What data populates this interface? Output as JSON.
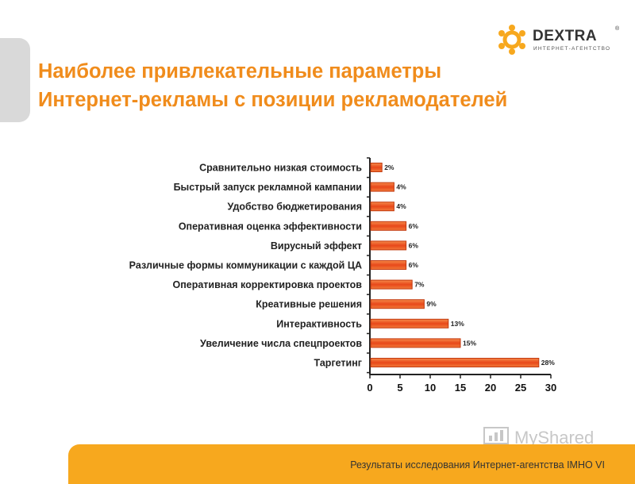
{
  "logo": {
    "name": "DEXTRA",
    "tagline": "ИНТЕРНЕТ-АГЕНТСТВО",
    "reg": "®"
  },
  "title": {
    "line1": "Наиболее привлекательные параметры",
    "line2": "Интернет-рекламы с позиции рекламодателей"
  },
  "chart_data": {
    "type": "bar",
    "orientation": "horizontal",
    "categories": [
      "Сравнительно низкая стоимость",
      "Быстрый запуск рекламной кампании",
      "Удобство бюджетирования",
      "Оперативная оценка эффективности",
      "Вирусный эффект",
      "Различные формы коммуникации с каждой ЦА",
      "Оперативная корректировка проектов",
      "Креативные решения",
      "Интерактивность",
      "Увеличение числа спецпроектов",
      "Таргетинг"
    ],
    "values": [
      2,
      4,
      4,
      6,
      6,
      6,
      7,
      9,
      13,
      15,
      28
    ],
    "data_labels": [
      "2%",
      "4%",
      "4%",
      "6%",
      "6%",
      "6%",
      "7%",
      "9%",
      "13%",
      "15%",
      "28%"
    ],
    "xlim": [
      0,
      30
    ],
    "xticks": [
      "0",
      "5",
      "10",
      "15",
      "20",
      "25",
      "30"
    ],
    "bar_color": "#ef5b1a",
    "grid": false
  },
  "footer": {
    "source": "Результаты исследования Интернет-агентства IMHO VI"
  },
  "watermark": {
    "text": "MyShared"
  },
  "colors": {
    "accent": "#f08c1c",
    "footer_bar": "#f7a81e",
    "tab": "#d9d9d9"
  }
}
